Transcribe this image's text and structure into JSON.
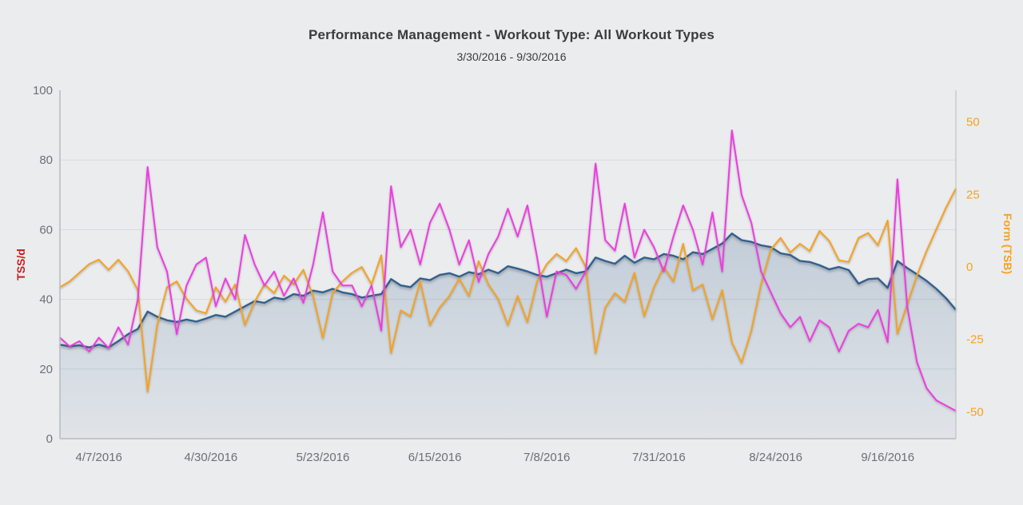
{
  "header": {
    "title": "Performance Management - Workout Type: All Workout Types",
    "subtitle": "3/30/2016 - 9/30/2016"
  },
  "chart_data": {
    "type": "line",
    "title": "Performance Management - Workout Type: All Workout Types",
    "subtitle": "3/30/2016 - 9/30/2016",
    "grid": "horizontal-only",
    "legend": "none",
    "x_axis": {
      "start_date": "3/30/2016",
      "end_date": "9/30/2016",
      "total_days": 184,
      "tick_labels": [
        "4/7/2016",
        "4/30/2016",
        "5/23/2016",
        "6/15/2016",
        "7/8/2016",
        "7/31/2016",
        "8/24/2016",
        "9/16/2016"
      ],
      "tick_days": [
        8,
        31,
        54,
        77,
        100,
        123,
        147,
        170
      ],
      "tick_color": "#6c7074"
    },
    "y_axis_left": {
      "label": "TSS/d",
      "label_color": "#c42020",
      "min": 0,
      "max": 100,
      "ticks": [
        0,
        20,
        40,
        60,
        80,
        100
      ],
      "gridline_ticks": [
        20,
        40,
        60,
        80
      ],
      "tick_color": "#6c7074"
    },
    "y_axis_right": {
      "label": "Form (TSB)",
      "label_color": "#f6a21c",
      "ticks": [
        50,
        25,
        0,
        -25,
        -50
      ],
      "tick_color": "#f6a21c"
    },
    "sample_step_days": 2,
    "series": [
      {
        "name": "blue-area-tss-per-day",
        "axis": "left",
        "style": "area-line",
        "color": "#33618d",
        "fill_top": "rgba(51,97,141,0.22)",
        "fill_bottom": "rgba(51,97,141,0.06)",
        "values": [
          27,
          26.5,
          26.8,
          26.2,
          27,
          26.2,
          28,
          30,
          31.5,
          36.5,
          35,
          34,
          33.5,
          34.2,
          33.6,
          34.5,
          35.5,
          35,
          36.5,
          38,
          39.5,
          39,
          40.5,
          40,
          41.5,
          41,
          42.5,
          42,
          43,
          42,
          41.5,
          40.5,
          41,
          41.5,
          45.8,
          44,
          43.5,
          46,
          45.5,
          47,
          47.5,
          46.5,
          47.8,
          47.2,
          48.5,
          47.5,
          49.5,
          48.8,
          48,
          47,
          46.5,
          47.5,
          48.5,
          47.5,
          48,
          52,
          51,
          50.2,
          52.5,
          50.5,
          52,
          51.5,
          53,
          52.5,
          51.5,
          53.5,
          53,
          54.5,
          56,
          58.9,
          57,
          56.5,
          55.5,
          55,
          53.2,
          52.7,
          51,
          50.7,
          49.8,
          48.6,
          49.3,
          48.4,
          44.5,
          45.8,
          46,
          43.3,
          51,
          49,
          47.2,
          45.3,
          43,
          40.3,
          37
        ]
      },
      {
        "name": "pink-line-tss-per-day",
        "axis": "left",
        "style": "line",
        "color": "#f03ae0",
        "values": [
          29,
          26.5,
          28,
          25,
          29,
          26,
          32,
          27,
          40,
          78,
          55,
          48,
          30,
          44,
          50,
          52,
          38,
          46,
          40,
          58.5,
          50,
          44,
          48,
          41,
          46,
          39,
          50,
          65,
          48,
          44,
          44,
          38,
          44,
          31,
          72.5,
          55,
          60,
          50,
          62,
          67.5,
          60,
          50,
          57,
          45,
          53,
          58,
          66,
          58,
          67,
          52,
          35,
          48,
          47,
          43,
          48,
          79,
          57,
          54,
          67.5,
          52,
          60,
          55,
          48,
          58,
          67,
          60,
          50,
          65,
          48,
          88.5,
          70,
          62,
          48,
          42,
          36,
          32,
          35,
          28,
          34,
          32,
          25,
          31,
          33,
          32,
          37,
          27.7,
          74.5,
          38,
          22,
          14.5,
          11,
          9.5,
          8
        ]
      },
      {
        "name": "orange-line-form-tsb",
        "axis": "right",
        "style": "line",
        "color": "#f6a21c",
        "values": [
          -7,
          -5,
          -2,
          1,
          2.5,
          -1,
          2.5,
          -1.5,
          -8,
          -43,
          -20,
          -7,
          -5,
          -11,
          -15,
          -16,
          -7,
          -12,
          -6,
          -20,
          -12,
          -6,
          -9,
          -3,
          -6,
          -1,
          -10,
          -24.5,
          -9,
          -5,
          -2,
          0,
          -6,
          4,
          -29.7,
          -15,
          -17,
          -5,
          -20,
          -14,
          -10,
          -4,
          -10,
          2,
          -6,
          -11,
          -20,
          -10,
          -19,
          -5,
          1,
          4.5,
          2,
          6.5,
          0,
          -29.7,
          -14,
          -9,
          -12,
          -2,
          -17,
          -7,
          0,
          -5,
          8,
          -8,
          -6,
          -18,
          -8,
          -26,
          -33,
          -22,
          -6,
          6,
          10,
          5,
          8,
          5.5,
          12.4,
          9,
          2.3,
          1.7,
          10,
          11.7,
          7.5,
          16,
          -23,
          -13,
          -3,
          5.5,
          13,
          20.5,
          27
        ]
      }
    ],
    "colors": {
      "background": "#ebecee",
      "gridline": "#d7d9db",
      "axis_line": "#b7babc"
    }
  }
}
